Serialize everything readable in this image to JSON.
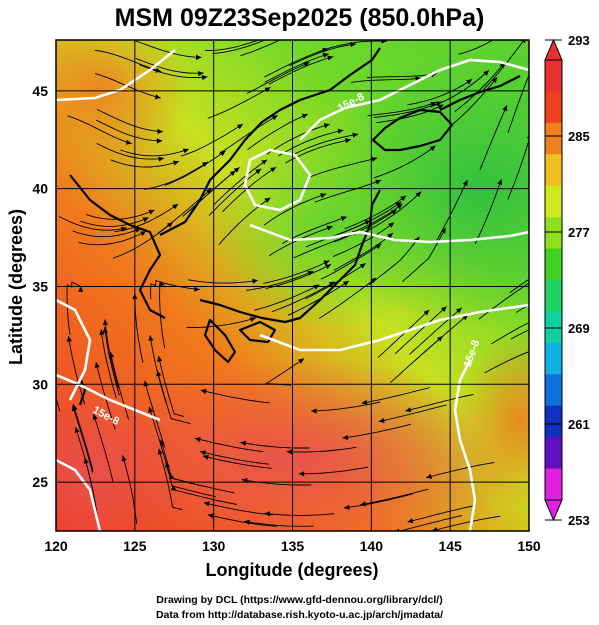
{
  "title": "MSM 09Z23Sep2025 (850.0hPa)",
  "chart_data": {
    "type": "heatmap",
    "title": "MSM 09Z23Sep2025 (850.0hPa)",
    "xlabel": "Longitude (degrees)",
    "ylabel": "Latitude  (degrees)",
    "xlim": [
      120,
      150
    ],
    "ylim": [
      22.5,
      47.6
    ],
    "x_ticks": [
      "120",
      "125",
      "130",
      "135",
      "140",
      "145",
      "150"
    ],
    "y_ticks": [
      "25",
      "30",
      "35",
      "40",
      "45"
    ],
    "x_tick_values": [
      120,
      125,
      130,
      135,
      140,
      145,
      150
    ],
    "y_tick_values": [
      25,
      30,
      35,
      40,
      45
    ],
    "grid": true,
    "colorbar": {
      "ticks": [
        "293",
        "285",
        "277",
        "269",
        "261",
        "253"
      ],
      "min": 253,
      "max": 293,
      "colors": [
        "#e020e0",
        "#6010c0",
        "#1030c0",
        "#1070e0",
        "#10b0e0",
        "#10d0a0",
        "#20d060",
        "#40d020",
        "#90e020",
        "#d0e820",
        "#f0c020",
        "#f08020",
        "#f04020",
        "#e83030"
      ]
    },
    "contour_labels": [
      "15e-8",
      "15e-8",
      "15e-8"
    ]
  },
  "credits": {
    "line1": "Drawing by DCL (https://www.gfd-dennou.org/library/dcl/)",
    "line2": "Data from http://database.rish.kyoto-u.ac.jp/arch/jmadata/"
  }
}
